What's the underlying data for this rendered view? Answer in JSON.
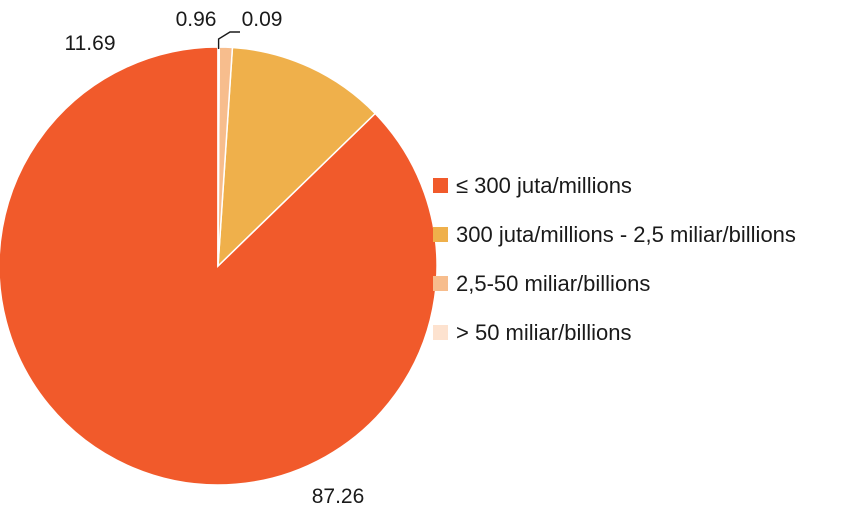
{
  "chart_data": {
    "type": "pie",
    "categories": [
      "≤ 300 juta/millions",
      "300 juta/millions - 2,5 miliar/billions",
      "2,5-50 miliar/billions",
      "> 50 miliar/billions"
    ],
    "values": [
      87.26,
      11.69,
      0.96,
      0.09
    ],
    "value_labels": [
      "87.26",
      "11.69",
      "0.96",
      "0.09"
    ],
    "colors": [
      "#f15a2b",
      "#efb04b",
      "#f7bd8d",
      "#fde2cf"
    ],
    "legend_position": "right",
    "start": "top, counter-clockwise"
  }
}
